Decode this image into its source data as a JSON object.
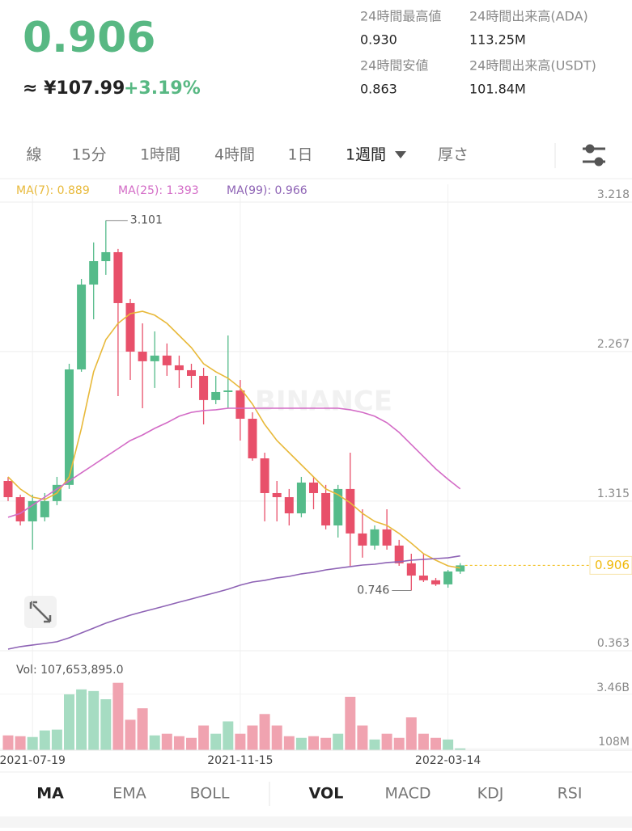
{
  "header": {
    "price": "0.906",
    "fiat": "≈ ¥107.99",
    "change": "+3.19%"
  },
  "stats": [
    {
      "label": "24時間最高値",
      "value": "0.930"
    },
    {
      "label": "24時間出来高(ADA)",
      "value": "113.25M"
    },
    {
      "label": "24時間安値",
      "value": "0.863"
    },
    {
      "label": "24時間出来高(USDT)",
      "value": "101.84M"
    }
  ],
  "intervals": [
    "線",
    "15分",
    "1時間",
    "4時間",
    "1日",
    "1週間",
    "厚さ"
  ],
  "indicators": [
    "MA",
    "EMA",
    "BOLL",
    "VOL",
    "MACD",
    "KDJ",
    "RSI"
  ],
  "chart_data": {
    "type": "candlestick",
    "watermark": "BINANCE",
    "categories": [
      null,
      null,
      "2021-07-19",
      null,
      null,
      null,
      null,
      null,
      null,
      null,
      null,
      null,
      null,
      null,
      null,
      null,
      null,
      null,
      null,
      "2021-11-15",
      null,
      null,
      null,
      null,
      null,
      null,
      null,
      null,
      null,
      null,
      null,
      null,
      null,
      null,
      null,
      null,
      "2022-03-14",
      null
    ],
    "open": [
      1.443,
      1.34,
      1.186,
      1.212,
      1.315,
      1.418,
      2.153,
      2.693,
      2.842,
      2.899,
      2.575,
      2.266,
      2.205,
      2.241,
      2.179,
      2.148,
      2.112,
      1.958,
      2.009,
      2.019,
      1.839,
      1.587,
      1.366,
      1.34,
      1.237,
      1.433,
      1.366,
      1.16,
      1.392,
      1.109,
      1.032,
      1.135,
      1.032,
      0.919,
      0.841,
      0.811,
      0.785,
      0.867
    ],
    "high": [
      1.469,
      1.356,
      1.356,
      1.366,
      1.469,
      2.189,
      2.729,
      2.961,
      3.101,
      2.92,
      2.601,
      2.446,
      2.395,
      2.318,
      2.241,
      2.189,
      2.163,
      2.112,
      2.369,
      2.086,
      1.88,
      1.623,
      1.443,
      1.392,
      1.469,
      1.469,
      1.418,
      1.418,
      1.623,
      1.263,
      1.16,
      1.263,
      1.068,
      0.98,
      0.98,
      0.826,
      0.877,
      0.92
    ],
    "low": [
      1.315,
      1.16,
      1.006,
      1.186,
      1.289,
      1.392,
      2.138,
      2.472,
      2.755,
      1.983,
      2.086,
      1.906,
      2.035,
      2.112,
      2.035,
      2.035,
      1.803,
      1.932,
      1.906,
      1.7,
      1.572,
      1.186,
      1.186,
      1.16,
      1.212,
      1.263,
      1.135,
      1.083,
      0.903,
      0.955,
      1.006,
      1.006,
      0.903,
      0.746,
      0.8,
      0.775,
      0.764,
      0.852
    ],
    "close": [
      1.34,
      1.186,
      1.315,
      1.315,
      1.418,
      2.153,
      2.693,
      2.842,
      2.899,
      2.575,
      2.266,
      2.205,
      2.241,
      2.179,
      2.148,
      2.112,
      1.958,
      2.009,
      2.019,
      1.839,
      1.587,
      1.366,
      1.34,
      1.237,
      1.433,
      1.366,
      1.16,
      1.392,
      1.109,
      1.032,
      1.135,
      1.032,
      0.919,
      0.841,
      0.811,
      0.785,
      0.867,
      0.906
    ],
    "up_color": "#55bb8a",
    "down_color": "#e8506a",
    "last_price_color": "#f0b90b",
    "ylim": [
      0.337,
      3.331
    ],
    "yticks": [
      0.363,
      1.315,
      2.267,
      3.218
    ],
    "grid": true,
    "series": [
      {
        "name": "MA(7): 0.889",
        "color": "#e8b93a",
        "values": [
          1.469,
          1.392,
          1.34,
          1.325,
          1.366,
          1.469,
          1.778,
          2.138,
          2.343,
          2.446,
          2.508,
          2.523,
          2.498,
          2.446,
          2.369,
          2.292,
          2.189,
          2.138,
          2.097,
          2.035,
          1.932,
          1.803,
          1.7,
          1.623,
          1.546,
          1.469,
          1.392,
          1.356,
          1.304,
          1.237,
          1.186,
          1.16,
          1.109,
          1.047,
          0.98,
          0.939,
          0.903,
          0.889
        ]
      },
      {
        "name": "MA(25): 1.393",
        "color": "#d36bc6",
        "values": [
          1.212,
          1.237,
          1.289,
          1.34,
          1.392,
          1.443,
          1.495,
          1.546,
          1.598,
          1.649,
          1.7,
          1.736,
          1.778,
          1.814,
          1.855,
          1.88,
          1.891,
          1.896,
          1.906,
          1.906,
          1.906,
          1.906,
          1.906,
          1.906,
          1.906,
          1.906,
          1.906,
          1.906,
          1.896,
          1.88,
          1.855,
          1.814,
          1.752,
          1.675,
          1.598,
          1.52,
          1.454,
          1.393
        ]
      },
      {
        "name": "MA(99): 0.966",
        "color": "#8e63b5",
        "values": [
          0.373,
          0.389,
          0.399,
          0.409,
          0.42,
          0.445,
          0.476,
          0.507,
          0.538,
          0.564,
          0.589,
          0.61,
          0.63,
          0.651,
          0.672,
          0.692,
          0.713,
          0.733,
          0.754,
          0.78,
          0.8,
          0.811,
          0.826,
          0.836,
          0.852,
          0.862,
          0.877,
          0.888,
          0.898,
          0.908,
          0.913,
          0.924,
          0.929,
          0.939,
          0.944,
          0.949,
          0.954,
          0.966
        ]
      }
    ],
    "volume": {
      "label": "Vol: 107,653,895.0",
      "up_color": "#a6dcc2",
      "down_color": "#f0a3b0",
      "values": [
        914000000,
        864000000,
        813000000,
        1219000000,
        1270000000,
        3454000000,
        3759000000,
        3658000000,
        3150000000,
        4166000000,
        1880000000,
        2591000000,
        914000000,
        1016000000,
        864000000,
        762000000,
        1524000000,
        1016000000,
        1778000000,
        1016000000,
        1524000000,
        2235000000,
        1524000000,
        864000000,
        762000000,
        864000000,
        762000000,
        1016000000,
        3302000000,
        1524000000,
        660000000,
        1016000000,
        762000000,
        2032000000,
        1016000000,
        762000000,
        660000000,
        107653895
      ],
      "ylim": [
        0,
        5500000000
      ],
      "yticks": [
        {
          "value": 108000000,
          "label": "108M"
        },
        {
          "value": 3460000000,
          "label": "3.46B"
        }
      ]
    }
  }
}
